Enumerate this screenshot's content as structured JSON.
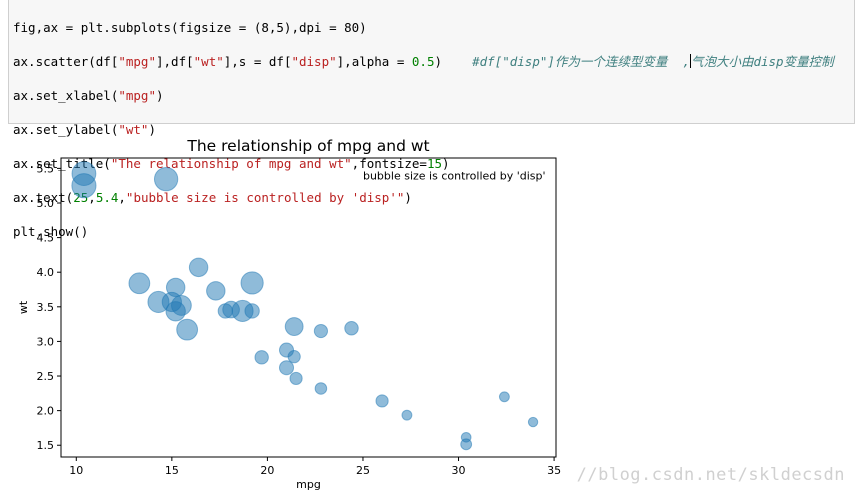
{
  "code": {
    "line1": "fig,ax = plt.subplots(figsize = (8,5),dpi = 80)",
    "line2": {
      "a": "ax.scatter(df[",
      "s1": "\"mpg\"",
      "b": "],df[",
      "s2": "\"wt\"",
      "c": "],s = df[",
      "s3": "\"disp\"",
      "d": "],alpha = ",
      "n1": "0.5",
      "e": ")    ",
      "comment_a": "#df[\"disp\"]作为一个连续型变量  ,",
      "comment_b": "气泡大小由disp变量控制"
    },
    "line3": {
      "a": "ax.set_xlabel(",
      "s": "\"mpg\"",
      "b": ")"
    },
    "line4": {
      "a": "ax.set_ylabel(",
      "s": "\"wt\"",
      "b": ")"
    },
    "line5": {
      "a": "ax.set_title(",
      "s": "\"The relationship of mpg and wt\"",
      "b": ",fontsize=",
      "n": "15",
      "c": ")"
    },
    "line6": {
      "a": "ax.text(",
      "n1": "25",
      "b": ",",
      "n2": "5.4",
      "c": ",",
      "s": "\"bubble size is controlled by 'disp'\"",
      "d": ")"
    },
    "line7": "plt.show()"
  },
  "chart_data": {
    "type": "scatter",
    "title": "The relationship of mpg and wt",
    "xlabel": "mpg",
    "ylabel": "wt",
    "annotation": "bubble size is controlled by 'disp'",
    "xlim": [
      9.2,
      35.1
    ],
    "ylim": [
      1.33,
      5.65
    ],
    "xticks": [
      10,
      15,
      20,
      25,
      30,
      35
    ],
    "yticks": [
      1.5,
      2.0,
      2.5,
      3.0,
      3.5,
      4.0,
      4.5,
      5.0,
      5.5
    ],
    "alpha": 0.5,
    "color": "#1f77b4",
    "points": [
      {
        "mpg": 21.0,
        "wt": 2.62,
        "disp": 160
      },
      {
        "mpg": 21.0,
        "wt": 2.875,
        "disp": 160
      },
      {
        "mpg": 22.8,
        "wt": 2.32,
        "disp": 108
      },
      {
        "mpg": 21.4,
        "wt": 3.215,
        "disp": 258
      },
      {
        "mpg": 18.7,
        "wt": 3.44,
        "disp": 360
      },
      {
        "mpg": 18.1,
        "wt": 3.46,
        "disp": 225
      },
      {
        "mpg": 14.3,
        "wt": 3.57,
        "disp": 360
      },
      {
        "mpg": 24.4,
        "wt": 3.19,
        "disp": 146.7
      },
      {
        "mpg": 22.8,
        "wt": 3.15,
        "disp": 140.8
      },
      {
        "mpg": 19.2,
        "wt": 3.44,
        "disp": 167.6
      },
      {
        "mpg": 17.8,
        "wt": 3.44,
        "disp": 167.6
      },
      {
        "mpg": 16.4,
        "wt": 4.07,
        "disp": 275.8
      },
      {
        "mpg": 17.3,
        "wt": 3.73,
        "disp": 275.8
      },
      {
        "mpg": 15.2,
        "wt": 3.78,
        "disp": 275.8
      },
      {
        "mpg": 10.4,
        "wt": 5.25,
        "disp": 472
      },
      {
        "mpg": 10.4,
        "wt": 5.424,
        "disp": 460
      },
      {
        "mpg": 14.7,
        "wt": 5.345,
        "disp": 440
      },
      {
        "mpg": 32.4,
        "wt": 2.2,
        "disp": 78.7
      },
      {
        "mpg": 30.4,
        "wt": 1.615,
        "disp": 75.7
      },
      {
        "mpg": 33.9,
        "wt": 1.835,
        "disp": 71.1
      },
      {
        "mpg": 21.5,
        "wt": 2.465,
        "disp": 120.1
      },
      {
        "mpg": 15.5,
        "wt": 3.52,
        "disp": 318
      },
      {
        "mpg": 15.2,
        "wt": 3.435,
        "disp": 304
      },
      {
        "mpg": 13.3,
        "wt": 3.84,
        "disp": 350
      },
      {
        "mpg": 19.2,
        "wt": 3.845,
        "disp": 400
      },
      {
        "mpg": 27.3,
        "wt": 1.935,
        "disp": 79
      },
      {
        "mpg": 26.0,
        "wt": 2.14,
        "disp": 120.3
      },
      {
        "mpg": 30.4,
        "wt": 1.513,
        "disp": 95.1
      },
      {
        "mpg": 15.8,
        "wt": 3.17,
        "disp": 351
      },
      {
        "mpg": 19.7,
        "wt": 2.77,
        "disp": 145
      },
      {
        "mpg": 15.0,
        "wt": 3.57,
        "disp": 301
      },
      {
        "mpg": 21.4,
        "wt": 2.78,
        "disp": 121
      }
    ]
  },
  "watermark": "//blog.csdn.net/skldecsdn"
}
